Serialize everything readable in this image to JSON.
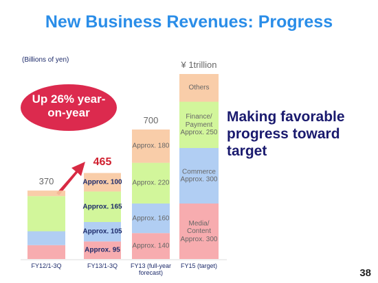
{
  "title": "New Business Revenues: Progress",
  "page_number": "38",
  "chart_data": {
    "type": "stacked-bar",
    "unit": "(Billions of yen)",
    "categories": [
      "FY12/1-3Q",
      "FY13/1-3Q",
      "FY13 (full-year forecast)",
      "FY15 (target)"
    ],
    "series": [
      {
        "color": "#f6a3a6",
        "values": [
          75,
          95,
          140,
          300
        ],
        "value_labels": [
          null,
          "Approx. 95",
          "Approx. 140",
          "Media/ Content Approx. 300"
        ]
      },
      {
        "color": "#a9c9f2",
        "values": [
          75,
          105,
          160,
          300
        ],
        "value_labels": [
          null,
          "Approx. 105",
          "Approx. 160",
          "Commerce Approx. 300"
        ]
      },
      {
        "color": "#cdf590",
        "values": [
          190,
          165,
          220,
          250
        ],
        "value_labels": [
          null,
          "Approx. 165",
          "Approx. 220",
          "Finance/ Payment Approx. 250"
        ]
      },
      {
        "color": "#f8c8a0",
        "values": [
          30,
          100,
          180,
          150
        ],
        "value_labels": [
          null,
          "Approx. 100",
          "Approx. 180",
          "Others"
        ]
      }
    ],
    "totals": [
      370,
      465,
      700,
      {
        "value": 1000,
        "label": "¥ 1trillion"
      }
    ],
    "annotations": {
      "growth": "Up 26% year-on-year",
      "message": "Making favorable progress toward target"
    }
  }
}
